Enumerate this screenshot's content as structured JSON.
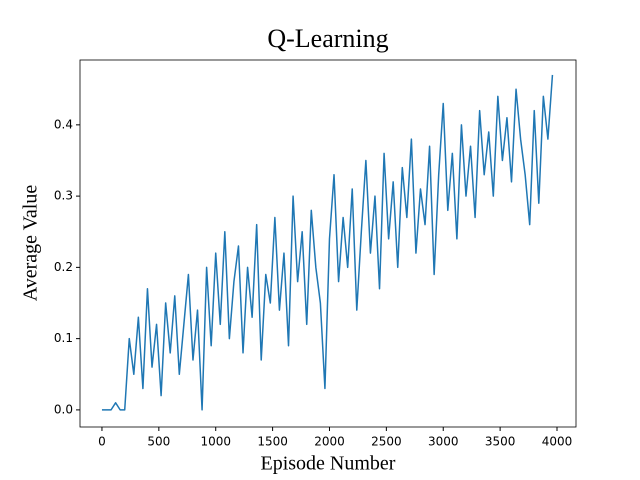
{
  "chart_data": {
    "type": "line",
    "title": "Q-Learning",
    "x_label": "Episode Number",
    "y_label": "Average Value",
    "x": [
      0,
      40,
      80,
      120,
      160,
      200,
      240,
      280,
      320,
      360,
      400,
      440,
      480,
      520,
      560,
      600,
      640,
      680,
      720,
      760,
      800,
      840,
      880,
      920,
      960,
      1000,
      1040,
      1080,
      1120,
      1160,
      1200,
      1240,
      1280,
      1320,
      1360,
      1400,
      1440,
      1480,
      1520,
      1560,
      1600,
      1640,
      1680,
      1720,
      1760,
      1800,
      1840,
      1880,
      1920,
      1960,
      2000,
      2040,
      2080,
      2120,
      2160,
      2200,
      2240,
      2280,
      2320,
      2360,
      2400,
      2440,
      2480,
      2520,
      2560,
      2600,
      2640,
      2680,
      2720,
      2760,
      2800,
      2840,
      2880,
      2920,
      2960,
      3000,
      3040,
      3080,
      3120,
      3160,
      3200,
      3240,
      3280,
      3320,
      3360,
      3400,
      3440,
      3480,
      3520,
      3560,
      3600,
      3640,
      3680,
      3720,
      3760,
      3800,
      3840,
      3880,
      3920,
      3960
    ],
    "series": [
      {
        "color": "#1f77b4",
        "values": [
          0,
          0,
          0,
          0.01,
          0,
          0,
          0.1,
          0.05,
          0.13,
          0.03,
          0.17,
          0.06,
          0.12,
          0.02,
          0.15,
          0.08,
          0.16,
          0.05,
          0.12,
          0.19,
          0.07,
          0.14,
          0.0,
          0.2,
          0.09,
          0.22,
          0.12,
          0.25,
          0.1,
          0.18,
          0.23,
          0.08,
          0.2,
          0.13,
          0.26,
          0.07,
          0.19,
          0.15,
          0.27,
          0.14,
          0.22,
          0.09,
          0.3,
          0.18,
          0.25,
          0.12,
          0.28,
          0.2,
          0.15,
          0.03,
          0.24,
          0.33,
          0.18,
          0.27,
          0.2,
          0.31,
          0.14,
          0.25,
          0.35,
          0.22,
          0.3,
          0.17,
          0.36,
          0.24,
          0.32,
          0.2,
          0.34,
          0.27,
          0.38,
          0.22,
          0.31,
          0.26,
          0.37,
          0.19,
          0.33,
          0.43,
          0.28,
          0.36,
          0.24,
          0.4,
          0.3,
          0.37,
          0.27,
          0.42,
          0.33,
          0.39,
          0.3,
          0.44,
          0.35,
          0.41,
          0.32,
          0.45,
          0.38,
          0.33,
          0.26,
          0.42,
          0.29,
          0.44,
          0.38,
          0.47
        ]
      }
    ],
    "xlim": [
      -193,
      4167
    ],
    "xticks": [
      0,
      500,
      1000,
      1500,
      2000,
      2500,
      3000,
      3500,
      4000
    ],
    "ylim": [
      -0.024,
      0.491
    ],
    "yticks": [
      {
        "value": 0,
        "label": "0.0"
      },
      0.1,
      0.2,
      0.3,
      0.4
    ]
  }
}
